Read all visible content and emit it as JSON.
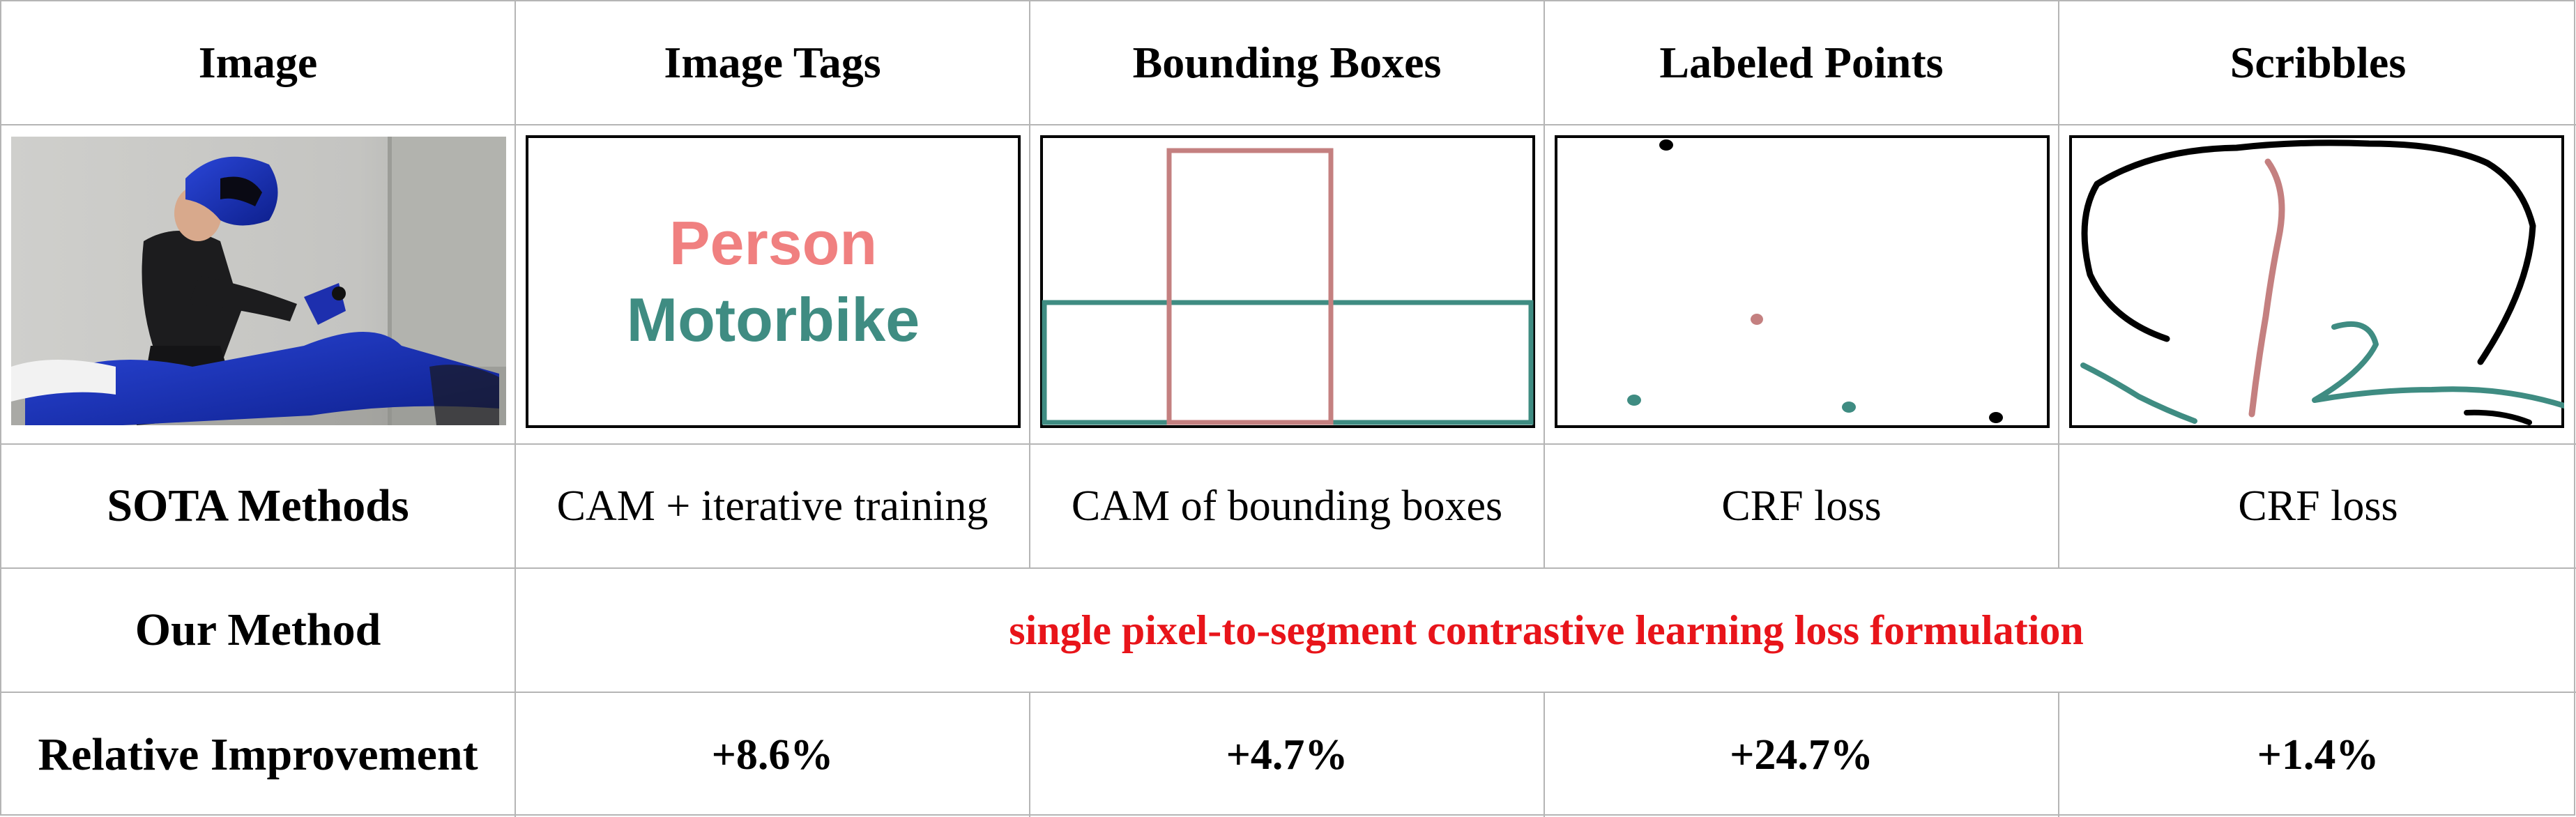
{
  "headers": {
    "image": "Image",
    "image_tags": "Image Tags",
    "bounding_boxes": "Bounding Boxes",
    "labeled_points": "Labeled Points",
    "scribbles": "Scribbles"
  },
  "tags": {
    "person": "Person",
    "motorbike": "Motorbike"
  },
  "colors": {
    "person": "#f08080",
    "person_stroke": "#c48080",
    "motorbike": "#3f8c82",
    "ours_text": "#e8141a",
    "grid": "#b5b5b5"
  },
  "sota": {
    "label": "SOTA Methods",
    "image_tags": "CAM + iterative training",
    "bounding_boxes": "CAM of bounding boxes",
    "labeled_points": "CRF loss",
    "scribbles": "CRF loss"
  },
  "ours": {
    "label": "Our Method",
    "text": "single pixel-to-segment contrastive learning loss formulation"
  },
  "improvement": {
    "label": "Relative Improvement",
    "image_tags": "+8.6%",
    "bounding_boxes": "+4.7%",
    "labeled_points": "+24.7%",
    "scribbles": "+1.4%"
  },
  "photo_description_icon": "motorcyclist-photo"
}
